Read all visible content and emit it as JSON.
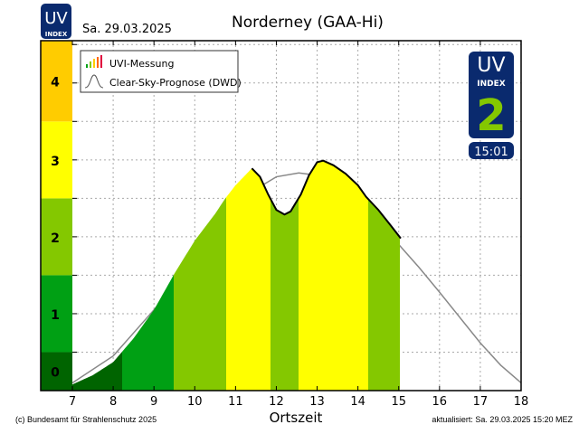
{
  "header": {
    "logo_uv": "UV",
    "logo_index": "INDEX",
    "date": "Sa. 29.03.2025",
    "title": "Norderney (GAA-Hi)"
  },
  "badge": {
    "uv": "UV",
    "index": "INDEX",
    "value": "2",
    "time": "15:01",
    "bg": "#0a2a6e",
    "value_color": "#84c800"
  },
  "footer": {
    "copyright": "(c) Bundesamt für Strahlenschutz 2025",
    "updated": "aktualisiert: Sa. 29.03.2025  15:20  MEZ"
  },
  "chart_data": {
    "type": "area",
    "title": "Norderney (GAA-Hi)",
    "xlabel": "Ortszeit",
    "ylabel": "",
    "xlim": [
      6.22,
      18
    ],
    "ylim": [
      0,
      4.55
    ],
    "grid": true,
    "legend_position": "top-left",
    "x_ticks": [
      "7",
      "8",
      "9",
      "10",
      "11",
      "12",
      "13",
      "14",
      "15",
      "16",
      "17",
      "18"
    ],
    "level_labels": [
      "0",
      "1",
      "2",
      "3",
      "4"
    ],
    "level_colors": [
      "#006400",
      "#00a014",
      "#84c800",
      "#ffff00",
      "#ffcc00"
    ],
    "legend": [
      "UVI-Messung",
      "Clear-Sky-Prognose (DWD)"
    ],
    "series": [
      {
        "name": "UVI-Messung",
        "x": [
          7.0,
          7.5,
          8.0,
          8.5,
          9.0,
          9.5,
          10.0,
          10.5,
          10.75,
          11.0,
          11.2,
          11.4,
          11.6,
          11.8,
          12.0,
          12.2,
          12.35,
          12.6,
          12.8,
          13.0,
          13.15,
          13.4,
          13.7,
          14.0,
          14.2,
          14.5,
          14.8,
          15.05
        ],
        "y": [
          0.08,
          0.2,
          0.37,
          0.68,
          1.05,
          1.52,
          1.95,
          2.3,
          2.5,
          2.67,
          2.78,
          2.89,
          2.78,
          2.55,
          2.35,
          2.29,
          2.33,
          2.55,
          2.8,
          2.97,
          2.99,
          2.93,
          2.82,
          2.67,
          2.52,
          2.35,
          2.15,
          1.98
        ]
      },
      {
        "name": "Clear-Sky-Prognose (DWD)",
        "x": [
          7,
          8,
          9,
          10,
          11,
          11.5,
          12,
          12.55,
          13,
          13.5,
          14,
          14.5,
          15,
          15.5,
          16,
          16.5,
          17,
          17.5,
          18
        ],
        "y": [
          0.1,
          0.45,
          1.05,
          1.7,
          2.35,
          2.62,
          2.78,
          2.83,
          2.8,
          2.7,
          2.45,
          2.18,
          1.9,
          1.6,
          1.28,
          0.95,
          0.62,
          0.33,
          0.1
        ]
      }
    ]
  }
}
